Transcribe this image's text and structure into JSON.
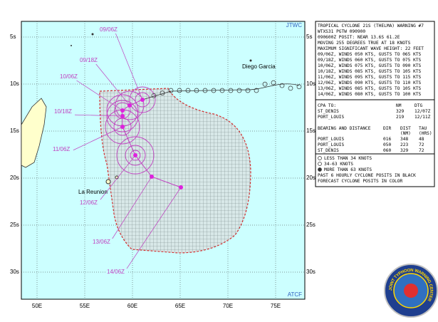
{
  "map": {
    "corner_labels": [
      "JTWC",
      "ATCF"
    ],
    "lat_labels": [
      "5s",
      "10s",
      "15s",
      "20s",
      "25s",
      "30s"
    ],
    "lon_labels": [
      "50E",
      "55E",
      "60E",
      "65E",
      "70E",
      "75E"
    ],
    "places": [
      "Diego Garcia",
      "La Reunion"
    ],
    "forecast_labels": [
      "09/06Z",
      "09/18Z",
      "10/06Z",
      "10/18Z",
      "11/06Z",
      "12/06Z",
      "13/06Z",
      "14/06Z"
    ]
  },
  "warning": {
    "lines": [
      "TROPICAL CYCLONE 21S (THELMA) WARNING #7",
      "WTXS31 PGTW 090900",
      "090600Z POSIT: NEAR 13.6S 61.2E",
      "MOVING 255 DEGREES TRUE AT 18 KNOTS",
      "MAXIMUM SIGNIFICANT WAVE HEIGHT: 22 FEET",
      "09/06Z, WINDS 050 KTS, GUSTS TO 065 KTS",
      "09/18Z, WINDS 060 KTS, GUSTS TO 075 KTS",
      "10/06Z, WINDS 075 KTS, GUSTS TO 090 KTS",
      "10/18Z, WINDS 085 KTS, GUSTS TO 105 KTS",
      "11/06Z, WINDS 095 KTS, GUSTS TO 115 KTS",
      "12/06Z, WINDS 090 KTS, GUSTS TO 110 KTS",
      "13/06Z, WINDS 085 KTS, GUSTS TO 105 KTS",
      "14/06Z, WINDS 080 KTS, GUSTS TO 100 KTS"
    ]
  },
  "cpa": {
    "header": [
      "CPA TO:",
      "NM",
      "DTG"
    ],
    "rows": [
      [
        "ST_DENIS",
        "329",
        "12/07Z"
      ],
      [
        "PORT_LOUIS",
        "219",
        "12/11Z"
      ]
    ]
  },
  "bearing": {
    "header": [
      "BEARING AND DISTANCE",
      "DIR",
      "DIST",
      "TAU"
    ],
    "subheader": [
      "(NM)",
      "(HRS)"
    ],
    "rows": [
      [
        "PORT_LOUIS",
        "016",
        "348",
        "48"
      ],
      [
        "PORT_LOUIS",
        "050",
        "223",
        "72"
      ],
      [
        "ST_DENIS",
        "060",
        "329",
        "72"
      ]
    ]
  },
  "legend": [
    "LESS THAN 34 KNOTS",
    "34-63 KNOTS",
    "MORE THAN 63 KNOTS",
    "PAST 6 HOURLY CYCLONE POSITS IN BLACK",
    "FORECAST CYCLONE POSITS IN COLOR"
  ],
  "logo": {
    "text": "JOINT TYPHOON WARNING CENTER"
  }
}
